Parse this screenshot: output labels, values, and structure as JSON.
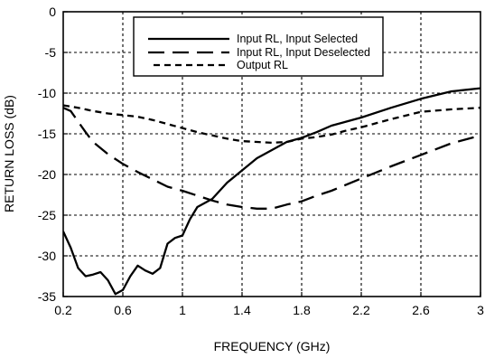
{
  "chart_data": {
    "type": "line",
    "title": "",
    "xlabel": "FREQUENCY (GHz)",
    "ylabel": "RETURN LOSS (dB)",
    "xlim": [
      0.2,
      3.0
    ],
    "ylim": [
      -35,
      0
    ],
    "x_ticks": [
      0.2,
      0.6,
      1.0,
      1.4,
      1.8,
      2.2,
      2.6,
      3.0
    ],
    "x_tick_labels": [
      "0.2",
      "0.6",
      "1",
      "1.4",
      "1.8",
      "2.2",
      "2.6",
      "3"
    ],
    "y_ticks": [
      0,
      -5,
      -10,
      -15,
      -20,
      -25,
      -30,
      -35
    ],
    "y_tick_labels": [
      "0",
      "-5",
      "-10",
      "-15",
      "-20",
      "-25",
      "-30",
      "-35"
    ],
    "grid": true,
    "legend_position": "top-right",
    "series": [
      {
        "name": "Input RL, Input Selected",
        "style": "solid",
        "x": [
          0.2,
          0.25,
          0.3,
          0.35,
          0.4,
          0.45,
          0.5,
          0.55,
          0.6,
          0.65,
          0.7,
          0.75,
          0.8,
          0.85,
          0.9,
          0.95,
          1.0,
          1.05,
          1.1,
          1.2,
          1.3,
          1.4,
          1.5,
          1.6,
          1.7,
          1.8,
          1.9,
          2.0,
          2.1,
          2.2,
          2.4,
          2.6,
          2.8,
          3.0
        ],
        "y": [
          -27,
          -29,
          -31.5,
          -32.5,
          -32.3,
          -32,
          -33,
          -34.7,
          -34.2,
          -32.5,
          -31.2,
          -31.8,
          -32.2,
          -31.5,
          -28.5,
          -27.8,
          -27.5,
          -25.5,
          -24,
          -23,
          -21,
          -19.5,
          -18,
          -17,
          -16,
          -15.5,
          -14.8,
          -14,
          -13.5,
          -13,
          -11.8,
          -10.7,
          -9.8,
          -9.4
        ]
      },
      {
        "name": "Input RL, Input Deselected",
        "style": "long-dash",
        "x": [
          0.2,
          0.25,
          0.3,
          0.35,
          0.4,
          0.5,
          0.6,
          0.7,
          0.8,
          0.9,
          1.0,
          1.1,
          1.2,
          1.3,
          1.4,
          1.5,
          1.6,
          1.7,
          1.8,
          1.9,
          2.0,
          2.2,
          2.4,
          2.6,
          2.8,
          3.0
        ],
        "y": [
          -11.8,
          -12.2,
          -13.5,
          -14.8,
          -16,
          -17.5,
          -18.7,
          -19.7,
          -20.6,
          -21.5,
          -22,
          -22.6,
          -23.2,
          -23.7,
          -24,
          -24.2,
          -24.2,
          -23.7,
          -23.3,
          -22.6,
          -22,
          -20.5,
          -19,
          -17.6,
          -16.2,
          -15.2
        ]
      },
      {
        "name": "Output RL",
        "style": "short-dash",
        "x": [
          0.2,
          0.3,
          0.4,
          0.5,
          0.6,
          0.7,
          0.8,
          0.9,
          1.0,
          1.1,
          1.2,
          1.3,
          1.4,
          1.5,
          1.6,
          1.7,
          1.8,
          1.9,
          2.0,
          2.1,
          2.2,
          2.4,
          2.6,
          2.8,
          3.0
        ],
        "y": [
          -11.5,
          -11.8,
          -12.2,
          -12.5,
          -12.7,
          -12.9,
          -13.3,
          -13.8,
          -14.3,
          -14.8,
          -15.2,
          -15.6,
          -15.9,
          -16,
          -16.1,
          -16,
          -15.6,
          -15.4,
          -15.1,
          -14.6,
          -14.2,
          -13.2,
          -12.3,
          -12,
          -11.8
        ]
      }
    ]
  }
}
